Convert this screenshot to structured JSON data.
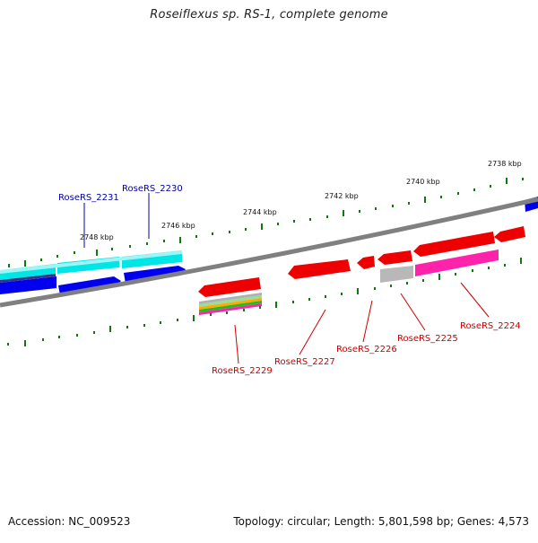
{
  "title": "Roseiflexus sp. RS-1, complete genome",
  "footer": {
    "accession": "Accession: NC_009523",
    "summary": "Topology: circular; Length: 5,801,598 bp; Genes: 4,573"
  },
  "scale_labels": [
    "2738 kbp",
    "2740 kbp",
    "2742 kbp",
    "2744 kbp",
    "2746 kbp",
    "2748 kbp"
  ],
  "forward_genes": [
    {
      "label": "RoseRS_2231",
      "color": "#0000aa"
    },
    {
      "label": "RoseRS_2230",
      "color": "#0000aa"
    }
  ],
  "reverse_genes": [
    {
      "label": "RoseRS_2229",
      "color": "#cc0000"
    },
    {
      "label": "RoseRS_2227",
      "color": "#cc0000"
    },
    {
      "label": "RoseRS_2226",
      "color": "#cc0000"
    },
    {
      "label": "RoseRS_2225",
      "color": "#cc0000"
    },
    {
      "label": "RoseRS_2224",
      "color": "#cc0000"
    }
  ],
  "colors": {
    "backbone": "#808080",
    "forward_cds": "#0000ee",
    "forward_feature": "#00e5e5",
    "reverse_cds": "#ee0000",
    "reverse_feature": "#ff22aa",
    "tick": "#117711"
  }
}
